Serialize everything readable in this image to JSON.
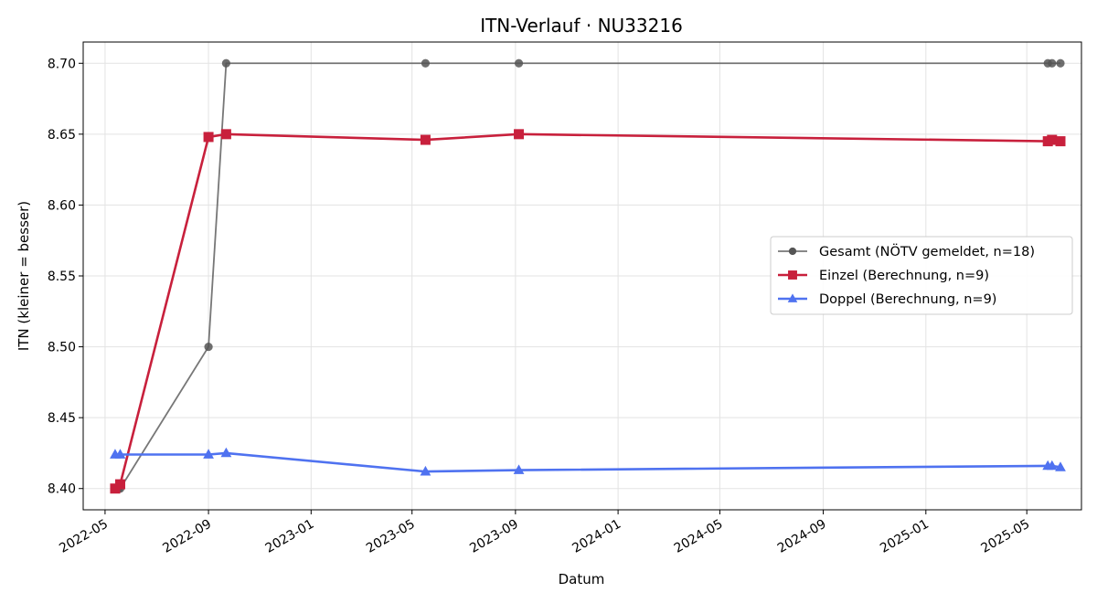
{
  "chart_data": {
    "type": "line",
    "title": "ITN-Verlauf · NU33216",
    "xlabel": "Datum",
    "ylabel": "ITN  (kleiner = besser)",
    "x_axis_type": "date",
    "xlim": [
      "2022-04-05",
      "2025-07-05"
    ],
    "ylim": [
      8.385,
      8.715
    ],
    "x_ticks": [
      "2022-05",
      "2022-09",
      "2023-01",
      "2023-05",
      "2023-09",
      "2024-01",
      "2024-05",
      "2024-09",
      "2025-01",
      "2025-05"
    ],
    "y_ticks": [
      8.4,
      8.45,
      8.5,
      8.55,
      8.6,
      8.65,
      8.7
    ],
    "y_tick_labels": [
      "8.40",
      "8.45",
      "8.50",
      "8.55",
      "8.60",
      "8.65",
      "8.70"
    ],
    "grid": true,
    "legend_position": "center-right",
    "series": [
      {
        "name": "Gesamt (NÖTV gemeldet, n=18)",
        "color": "#555555",
        "marker": "circle",
        "line_opacity": 0.8,
        "line_width": 1.8,
        "points": [
          {
            "x": "2022-05-17",
            "y": 8.4
          },
          {
            "x": "2022-05-19",
            "y": 8.4
          },
          {
            "x": "2022-09-01",
            "y": 8.5
          },
          {
            "x": "2022-09-22",
            "y": 8.7
          },
          {
            "x": "2023-05-17",
            "y": 8.7
          },
          {
            "x": "2023-09-05",
            "y": 8.7
          },
          {
            "x": "2025-05-26",
            "y": 8.7
          },
          {
            "x": "2025-05-31",
            "y": 8.7
          },
          {
            "x": "2025-06-10",
            "y": 8.7
          }
        ]
      },
      {
        "name": "Einzel (Berechnung, n=9)",
        "color": "#c8203c",
        "marker": "square",
        "line_opacity": 1,
        "line_width": 2.6,
        "points": [
          {
            "x": "2022-05-13",
            "y": 8.4
          },
          {
            "x": "2022-05-19",
            "y": 8.403
          },
          {
            "x": "2022-09-01",
            "y": 8.648
          },
          {
            "x": "2022-09-22",
            "y": 8.65
          },
          {
            "x": "2023-05-17",
            "y": 8.646
          },
          {
            "x": "2023-09-05",
            "y": 8.65
          },
          {
            "x": "2025-05-26",
            "y": 8.645
          },
          {
            "x": "2025-05-31",
            "y": 8.646
          },
          {
            "x": "2025-06-10",
            "y": 8.645
          }
        ]
      },
      {
        "name": "Doppel (Berechnung, n=9)",
        "color": "#4f72f0",
        "marker": "triangle",
        "line_opacity": 1,
        "line_width": 2.6,
        "points": [
          {
            "x": "2022-05-13",
            "y": 8.424
          },
          {
            "x": "2022-05-19",
            "y": 8.424
          },
          {
            "x": "2022-09-01",
            "y": 8.424
          },
          {
            "x": "2022-09-22",
            "y": 8.425
          },
          {
            "x": "2023-05-17",
            "y": 8.412
          },
          {
            "x": "2023-09-05",
            "y": 8.413
          },
          {
            "x": "2025-05-26",
            "y": 8.416
          },
          {
            "x": "2025-05-31",
            "y": 8.416
          },
          {
            "x": "2025-06-10",
            "y": 8.415
          }
        ]
      }
    ]
  }
}
